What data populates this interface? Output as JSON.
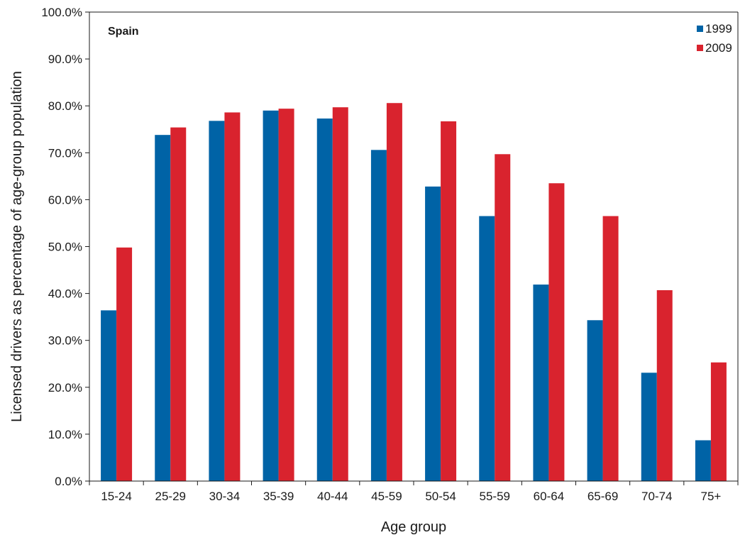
{
  "chart_data": {
    "type": "bar",
    "title": "Spain",
    "xlabel": "Age group",
    "ylabel": "Licensed drivers as percentage of age-group population",
    "categories": [
      "15-24",
      "25-29",
      "30-34",
      "35-39",
      "40-44",
      "45-59",
      "50-54",
      "55-59",
      "60-64",
      "65-69",
      "70-74",
      "75+"
    ],
    "series": [
      {
        "name": "1999",
        "color": "#0063a6",
        "values": [
          36.4,
          73.8,
          76.8,
          79.0,
          77.3,
          70.6,
          62.8,
          56.5,
          41.9,
          34.3,
          23.1,
          8.7
        ]
      },
      {
        "name": "2009",
        "color": "#d9232e",
        "values": [
          49.8,
          75.4,
          78.6,
          79.4,
          79.7,
          80.6,
          76.7,
          69.7,
          63.5,
          56.5,
          40.7,
          25.3
        ]
      }
    ],
    "ylim": [
      0,
      100
    ],
    "yticks": [
      "0.0%",
      "10.0%",
      "20.0%",
      "30.0%",
      "40.0%",
      "50.0%",
      "60.0%",
      "70.0%",
      "80.0%",
      "90.0%",
      "100.0%"
    ],
    "grid": false,
    "legend_position": "top-right"
  }
}
